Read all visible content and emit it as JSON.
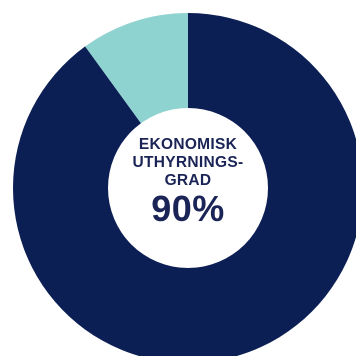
{
  "chart_data": {
    "type": "pie",
    "style": "donut",
    "slices": [
      {
        "value": 90,
        "color": "#0c1f55"
      },
      {
        "value": 10,
        "color": "#8fd3d1"
      }
    ],
    "center_label": {
      "lines": [
        "EKONOMISK",
        "UTHYRNINGS-",
        "GRAD"
      ],
      "value": "90%",
      "color": "#1a2456"
    }
  }
}
